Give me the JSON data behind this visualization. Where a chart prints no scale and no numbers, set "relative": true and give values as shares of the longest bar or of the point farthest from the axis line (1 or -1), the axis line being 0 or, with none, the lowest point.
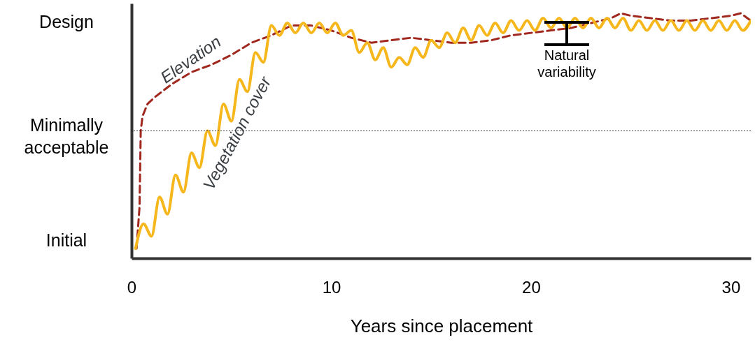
{
  "chart_data": {
    "type": "line",
    "relative": true,
    "xlabel": "Years since placement",
    "xlim": [
      0,
      31
    ],
    "xticks": [
      0,
      10,
      20,
      30
    ],
    "grid": false,
    "marker": "none",
    "ref_lines": [
      {
        "axis": "y",
        "value": 0.52,
        "label": "Minimally acceptable",
        "color": "#000000",
        "line_style": "dotted"
      }
    ],
    "annotations": [
      "Design",
      "Initial",
      "Natural variability"
    ],
    "series": [
      {
        "name": "Elevation",
        "color": "#a0281e",
        "line_style": "dashed",
        "x": [
          0.25,
          0.4,
          0.46,
          0.55,
          0.8,
          1.2,
          2,
          3,
          4,
          5,
          6,
          7,
          8,
          9,
          10,
          11,
          12,
          13,
          14,
          15,
          16,
          17,
          18,
          19,
          20,
          21,
          22,
          23,
          24,
          24.5,
          25,
          26,
          27,
          28,
          29,
          30,
          30.5,
          31
        ],
        "values": [
          0.04,
          0.21,
          0.52,
          0.58,
          0.63,
          0.66,
          0.71,
          0.76,
          0.79,
          0.83,
          0.88,
          0.91,
          0.95,
          0.95,
          0.93,
          0.9,
          0.88,
          0.89,
          0.9,
          0.89,
          0.88,
          0.88,
          0.89,
          0.91,
          0.92,
          0.93,
          0.94,
          0.96,
          0.98,
          1,
          0.99,
          0.98,
          0.97,
          0.97,
          0.98,
          0.99,
          1,
          0.97
        ]
      },
      {
        "name": "Vegetation cover",
        "color": "#f6b71d",
        "line_style": "solid",
        "x": [
          0.2,
          0.6,
          1.0,
          1.4,
          1.8,
          2.2,
          2.6,
          3.0,
          3.4,
          3.8,
          4.2,
          4.6,
          5.0,
          5.4,
          5.8,
          6.2,
          6.6,
          7.0,
          7.4,
          7.8,
          8.2,
          8.6,
          9.0,
          9.4,
          9.8,
          10.2,
          10.6,
          11.0,
          11.4,
          11.8,
          12.2,
          12.6,
          13.0,
          13.4,
          13.8,
          14.2,
          14.6,
          15.0,
          15.4,
          15.8,
          16.2,
          16.6,
          17.0,
          17.4,
          17.8,
          18.2,
          18.6,
          19.0,
          19.4,
          19.8,
          20.2,
          20.6,
          21.0,
          21.4,
          21.8,
          22.2,
          22.6,
          23.0,
          23.4,
          23.8,
          24.2,
          24.6,
          25.0,
          25.4,
          25.8,
          26.2,
          26.6,
          27.0,
          27.4,
          27.8,
          28.2,
          28.6,
          29.0,
          29.4,
          29.8,
          30.2,
          30.6,
          31.0
        ],
        "values": [
          0.04,
          0.14,
          0.09,
          0.25,
          0.18,
          0.34,
          0.27,
          0.43,
          0.37,
          0.52,
          0.46,
          0.63,
          0.56,
          0.73,
          0.68,
          0.84,
          0.8,
          0.95,
          0.91,
          0.96,
          0.92,
          0.96,
          0.92,
          0.96,
          0.92,
          0.96,
          0.91,
          0.93,
          0.84,
          0.88,
          0.81,
          0.86,
          0.78,
          0.82,
          0.79,
          0.86,
          0.82,
          0.89,
          0.86,
          0.92,
          0.88,
          0.94,
          0.89,
          0.95,
          0.91,
          0.96,
          0.92,
          0.97,
          0.93,
          0.97,
          0.93,
          0.98,
          0.94,
          0.98,
          0.94,
          0.98,
          0.94,
          0.98,
          0.94,
          0.98,
          0.94,
          0.98,
          0.93,
          0.97,
          0.93,
          0.97,
          0.93,
          0.97,
          0.93,
          0.97,
          0.93,
          0.97,
          0.93,
          0.97,
          0.93,
          0.97,
          0.93,
          0.97
        ]
      }
    ]
  }
}
